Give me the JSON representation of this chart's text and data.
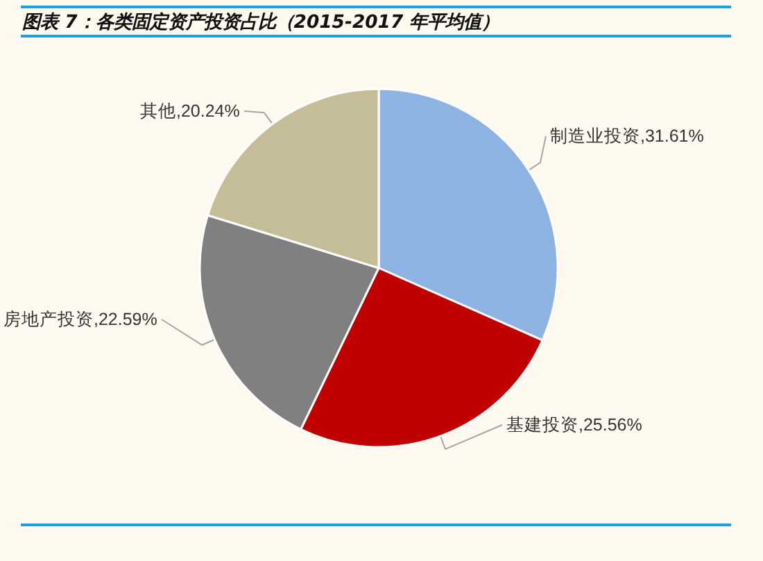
{
  "chart_data": {
    "type": "pie",
    "title": "图表 7：各类固定资产投资占比（2015-2017 年平均值）",
    "categories": [
      "制造业投资",
      "基建投资",
      "房地产投资",
      "其他"
    ],
    "values": [
      31.61,
      25.56,
      22.59,
      20.24
    ],
    "value_labels": [
      "31.61%",
      "25.56%",
      "22.59%",
      "20.24%"
    ],
    "colors": [
      "#8db3e2",
      "#c00000",
      "#808080",
      "#c4bd97"
    ],
    "legend": false
  }
}
